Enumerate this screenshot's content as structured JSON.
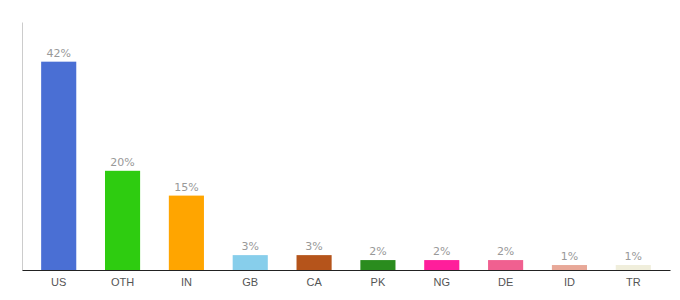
{
  "chart_data": {
    "type": "bar",
    "categories": [
      "US",
      "OTH",
      "IN",
      "GB",
      "CA",
      "PK",
      "NG",
      "DE",
      "ID",
      "TR"
    ],
    "values": [
      42,
      20,
      15,
      3,
      3,
      2,
      2,
      2,
      1,
      1
    ],
    "value_labels": [
      "42%",
      "20%",
      "15%",
      "3%",
      "3%",
      "2%",
      "2%",
      "2%",
      "1%",
      "1%"
    ],
    "colors": [
      "#4a6fd4",
      "#2ecc10",
      "#ffa500",
      "#87ceeb",
      "#b5541b",
      "#2a8c1e",
      "#ff1e9b",
      "#f06090",
      "#e8a898",
      "#f0eedb"
    ],
    "ylim": [
      0,
      50
    ],
    "grid": false,
    "data_labels": true,
    "tick_labels": "x"
  }
}
